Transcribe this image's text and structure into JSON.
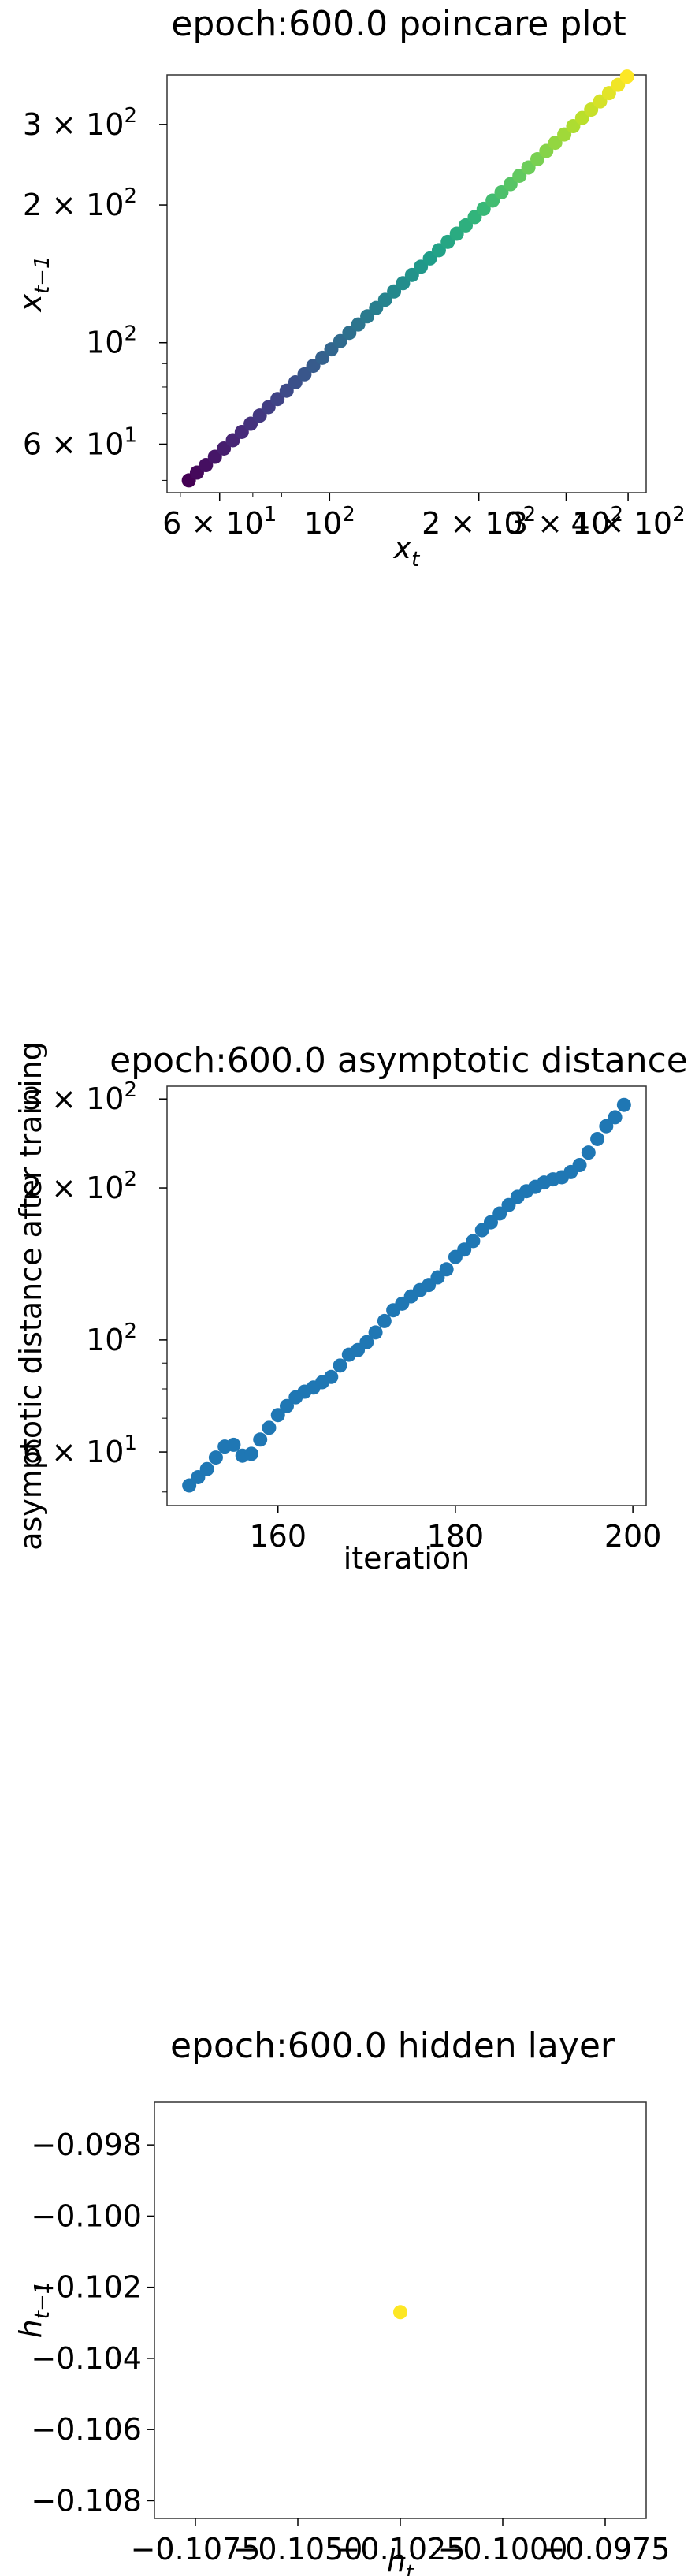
{
  "chart_data": [
    {
      "type": "scatter",
      "title": "epoch:600.0 poincare plot",
      "xlabel": "x_t",
      "ylabel": "x_{t-1}",
      "xscale": "log",
      "yscale": "log",
      "xlim": [
        47,
        435
      ],
      "ylim": [
        47,
        385
      ],
      "colormap": "viridis",
      "xticks": [
        {
          "value": 60,
          "label": "6 × 10",
          "exp": "1"
        },
        {
          "value": 100,
          "label": "10",
          "exp": "2"
        },
        {
          "value": 200,
          "label": "2 × 10",
          "exp": "2"
        },
        {
          "value": 300,
          "label": "3 × 10",
          "exp": "2"
        },
        {
          "value": 400,
          "label": "4 × 10",
          "exp": "2"
        }
      ],
      "yticks": [
        {
          "value": 60,
          "label": "6 × 10",
          "exp": "1"
        },
        {
          "value": 100,
          "label": "10",
          "exp": "2"
        },
        {
          "value": 200,
          "label": "2 × 10",
          "exp": "2"
        },
        {
          "value": 300,
          "label": "3 × 10",
          "exp": "2"
        }
      ],
      "x": [
        52.0,
        54.0,
        56.3,
        58.7,
        61.2,
        63.8,
        66.5,
        69.3,
        72.3,
        75.3,
        78.5,
        81.9,
        85.3,
        89.0,
        92.7,
        96.7,
        100.8,
        105.1,
        109.6,
        114.2,
        119.1,
        124.1,
        129.4,
        134.9,
        140.6,
        146.6,
        152.8,
        159.3,
        166.1,
        173.1,
        180.5,
        188.2,
        196.2,
        204.5,
        213.2,
        222.2,
        231.7,
        241.5,
        251.8,
        262.5,
        273.6,
        285.2,
        297.4,
        310.0,
        323.2,
        336.9,
        351.2,
        366.1,
        381.7,
        398.0
      ],
      "y": [
        50.0,
        52.0,
        54.0,
        56.3,
        58.7,
        61.2,
        63.8,
        66.5,
        69.3,
        72.3,
        75.3,
        78.5,
        81.9,
        85.3,
        89.0,
        92.7,
        96.7,
        100.8,
        105.1,
        109.6,
        114.2,
        119.1,
        124.1,
        129.4,
        134.9,
        140.6,
        146.6,
        152.8,
        159.3,
        166.1,
        173.1,
        180.5,
        188.2,
        196.2,
        204.5,
        213.2,
        222.2,
        231.7,
        241.5,
        251.8,
        262.5,
        273.6,
        285.2,
        297.4,
        310.0,
        323.2,
        336.9,
        351.2,
        366.1,
        381.7
      ]
    },
    {
      "type": "scatter",
      "title": "epoch:600.0 asymptotic distance",
      "xlabel": "iteration",
      "ylabel": "asymptotic distance after training",
      "yscale": "log",
      "xlim": [
        147.5,
        201.5
      ],
      "ylim": [
        47,
        318
      ],
      "color": "#1f77b4",
      "xticks": [
        {
          "value": 160,
          "label": "160"
        },
        {
          "value": 180,
          "label": "180"
        },
        {
          "value": 200,
          "label": "200"
        }
      ],
      "yticks": [
        {
          "value": 60,
          "label": "6 × 10",
          "exp": "1"
        },
        {
          "value": 100,
          "label": "10",
          "exp": "2"
        },
        {
          "value": 200,
          "label": "2 × 10",
          "exp": "2"
        },
        {
          "value": 300,
          "label": "3 × 10",
          "exp": "2"
        }
      ],
      "x": [
        150,
        151,
        152,
        153,
        154,
        155,
        156,
        157,
        158,
        159,
        160,
        161,
        162,
        163,
        164,
        165,
        166,
        167,
        168,
        169,
        170,
        171,
        172,
        173,
        174,
        175,
        176,
        177,
        178,
        179,
        180,
        181,
        182,
        183,
        184,
        185,
        186,
        187,
        188,
        189,
        190,
        191,
        192,
        193,
        194,
        195,
        196,
        197,
        198,
        199
      ],
      "y": [
        51.5,
        53.5,
        55.5,
        58.5,
        61.5,
        62.0,
        59.0,
        59.5,
        63.5,
        67.0,
        71.0,
        74.0,
        77.0,
        79.0,
        80.5,
        82.5,
        84.5,
        89.0,
        93.5,
        95.5,
        99.0,
        103.5,
        109.0,
        114.5,
        118.0,
        122.0,
        125.5,
        128.5,
        133.0,
        138.0,
        146.0,
        151.0,
        157.0,
        165.0,
        171.0,
        178.0,
        185.0,
        192.0,
        197.0,
        201.0,
        205.0,
        208.0,
        210.0,
        215.0,
        222.0,
        235.0,
        250.0,
        265.0,
        276.0,
        292.0
      ]
    },
    {
      "type": "scatter",
      "title": "epoch:600.0 hidden layer",
      "xlabel": "h_t",
      "ylabel": "h_{t-1}",
      "xlim": [
        -0.1085,
        -0.0965
      ],
      "ylim": [
        -0.1085,
        -0.0968
      ],
      "color": "#fde725",
      "xticks": [
        {
          "value": -0.1075,
          "label": "−0.1075"
        },
        {
          "value": -0.105,
          "label": "−0.1050"
        },
        {
          "value": -0.1025,
          "label": "−0.1025"
        },
        {
          "value": -0.1,
          "label": "−0.1000"
        },
        {
          "value": -0.0975,
          "label": "−0.0975"
        }
      ],
      "yticks": [
        {
          "value": -0.098,
          "label": "−0.098"
        },
        {
          "value": -0.1,
          "label": "−0.100"
        },
        {
          "value": -0.102,
          "label": "−0.102"
        },
        {
          "value": -0.104,
          "label": "−0.104"
        },
        {
          "value": -0.106,
          "label": "−0.106"
        },
        {
          "value": -0.108,
          "label": "−0.108"
        }
      ],
      "x": [
        -0.1025
      ],
      "y": [
        -0.1027
      ]
    }
  ]
}
